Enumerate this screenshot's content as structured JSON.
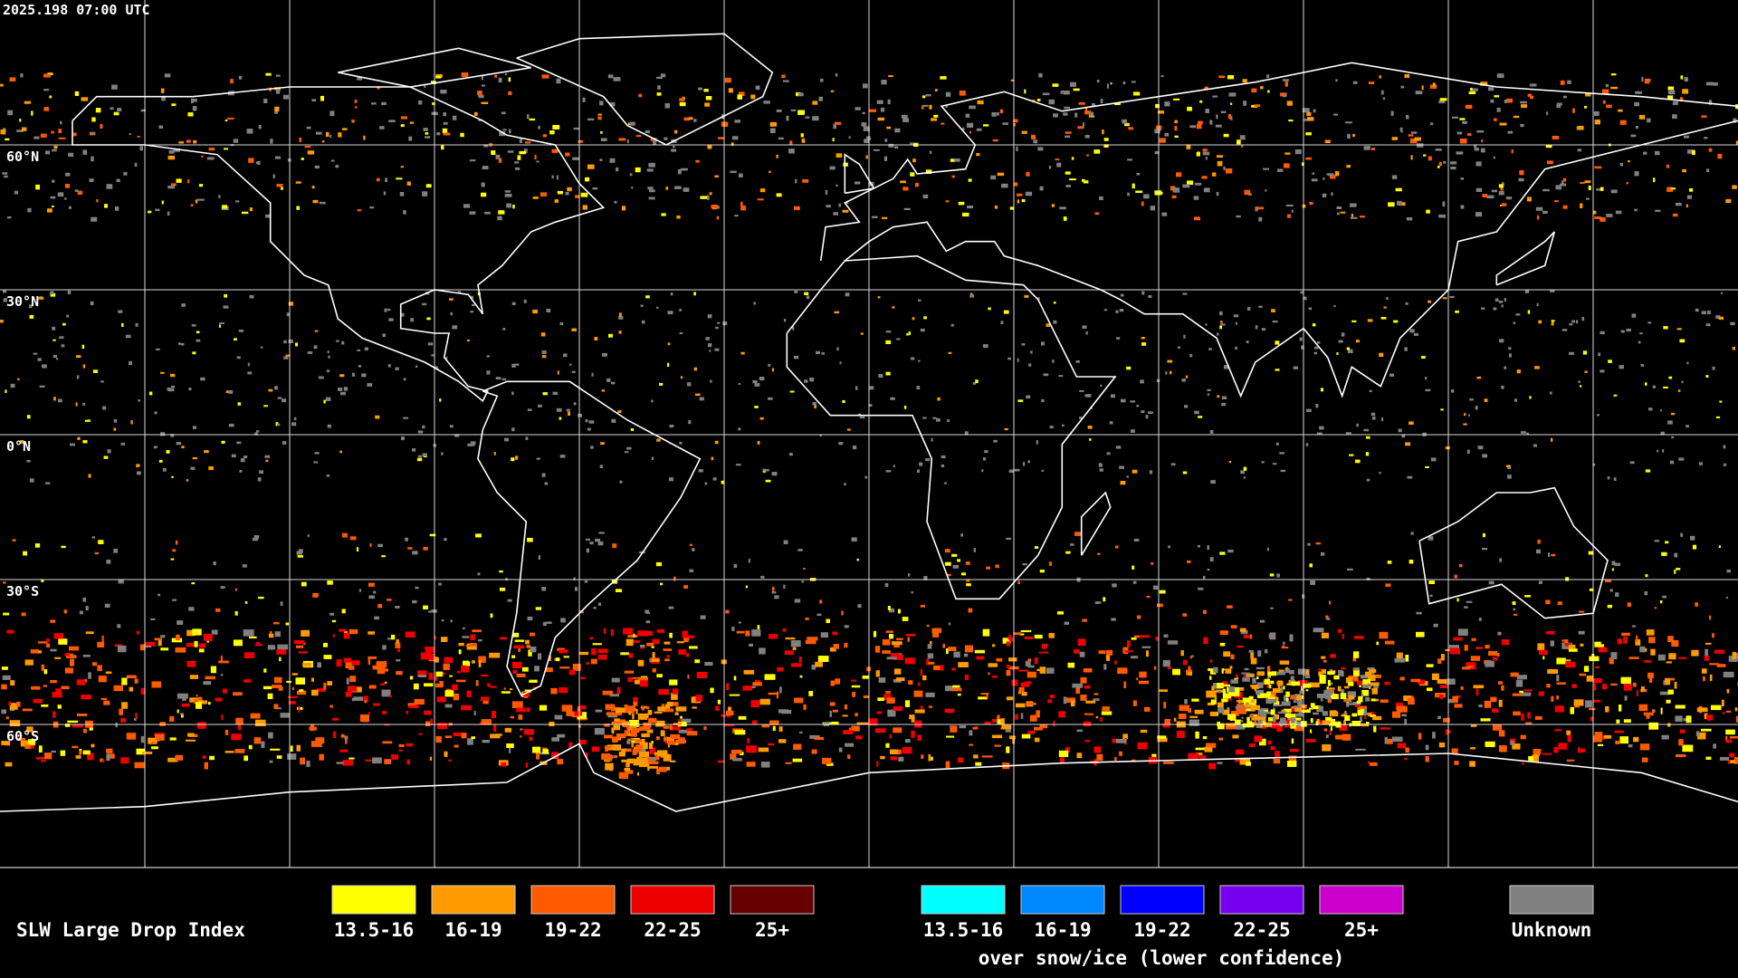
{
  "map": {
    "timestamp": "2025.198 07:00 UTC",
    "lat_labels": [
      "60°N",
      "30°N",
      "0°N",
      "30°S",
      "60°S"
    ]
  },
  "legend": {
    "title": "SLW Large Drop Index",
    "items": [
      {
        "label": "13.5-16",
        "color": "#ffff00"
      },
      {
        "label": "16-19",
        "color": "#ff9a00"
      },
      {
        "label": "19-22",
        "color": "#ff5a00"
      },
      {
        "label": "22-25",
        "color": "#ee0000"
      },
      {
        "label": "25+",
        "color": "#660000"
      }
    ],
    "snow_items": [
      {
        "label": "13.5-16",
        "color": "#00ffff"
      },
      {
        "label": "16-19",
        "color": "#0088ff"
      },
      {
        "label": "19-22",
        "color": "#0000ff"
      },
      {
        "label": "22-25",
        "color": "#7700ee"
      },
      {
        "label": "25+",
        "color": "#cc00cc"
      }
    ],
    "snow_note": "over snow/ice (lower confidence)",
    "unknown": {
      "label": "Unknown",
      "color": "#808080"
    }
  }
}
